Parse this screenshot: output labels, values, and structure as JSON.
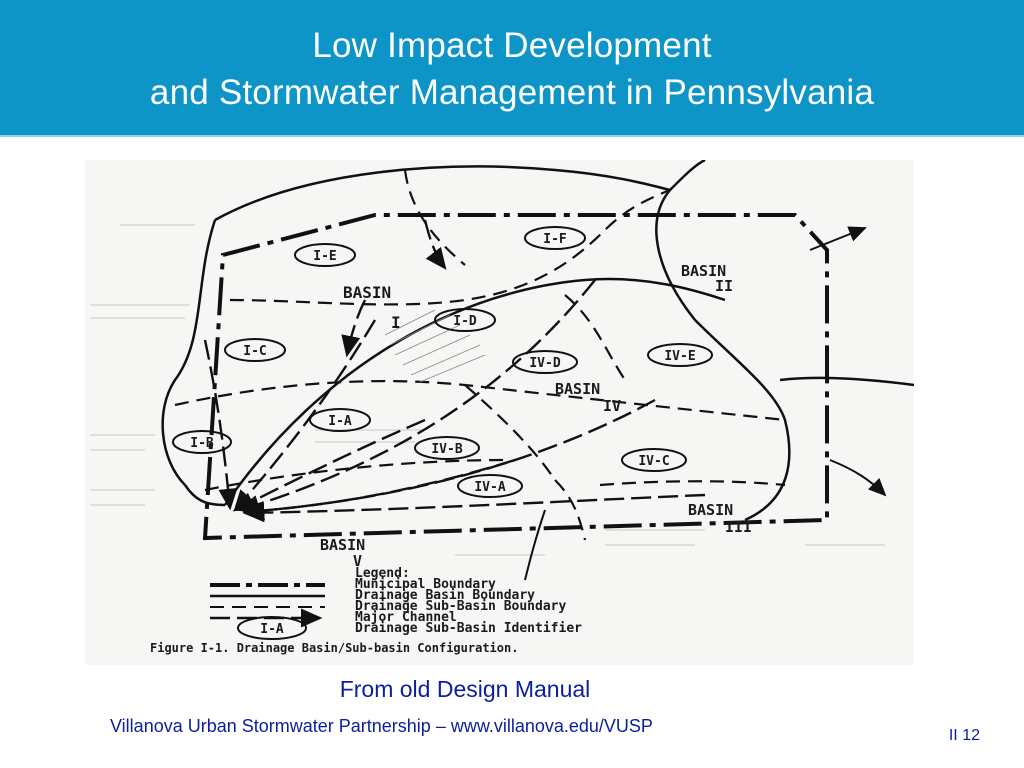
{
  "slide": {
    "title_line1": "Low Impact Development",
    "title_line2": "and Stormwater Management in Pennsylvania",
    "caption": "From old Design Manual",
    "footer": "Villanova Urban Stormwater Partnership – www.villanova.edu/VUSP",
    "page": "II 12"
  },
  "figure": {
    "basins": [
      {
        "name": "BASIN",
        "numeral": "I"
      },
      {
        "name": "BASIN",
        "numeral": "II"
      },
      {
        "name": "BASIN",
        "numeral": "IV"
      },
      {
        "name": "BASIN",
        "numeral": "III"
      },
      {
        "name": "BASIN",
        "numeral": "V"
      }
    ],
    "identifiers": [
      "I-E",
      "I-F",
      "I-D",
      "I-C",
      "IV-D",
      "IV-E",
      "I-A",
      "I-B",
      "IV-B",
      "IV-C",
      "IV-A"
    ],
    "legend": {
      "title": "Legend:",
      "items": [
        "Municipal Boundary",
        "Drainage Basin Boundary",
        "Drainage Sub-Basin Boundary",
        "Major Channel",
        "Drainage Sub-Basin Identifier"
      ],
      "sample_identifier": "I-A"
    },
    "caption": "Figure I-1.   Drainage Basin/Sub-basin Configuration."
  }
}
